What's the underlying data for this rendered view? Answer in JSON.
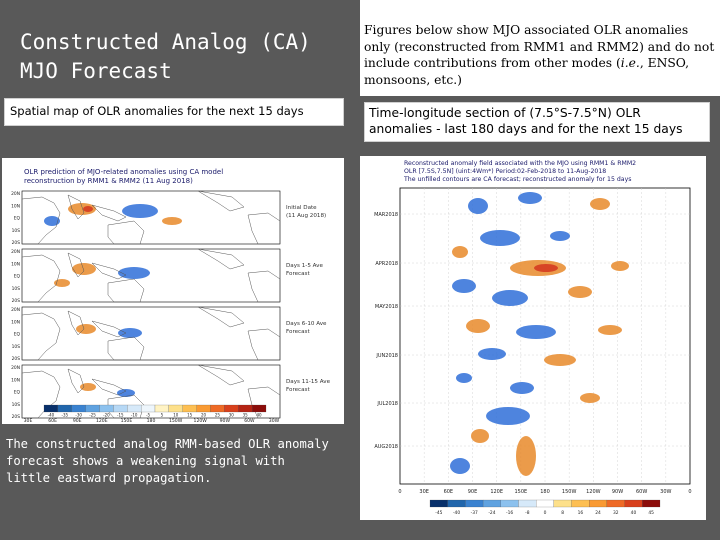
{
  "left_title": {
    "line1": "Constructed Analog (CA)",
    "line2": "MJO Forecast"
  },
  "left_caption": "Spatial map of OLR anomalies for the next 15 days",
  "left_summary": "The constructed analog RMM-based OLR anomaly forecast shows a weakening signal with little eastward propagation.",
  "right_note": {
    "before_italic": "Figures below show MJO associated OLR anomalies only (reconstructed from RMM1 and RMM2) and do not include contributions from other modes (",
    "italic": "i.e.",
    "after_italic": ", ENSO, monsoons, etc.)"
  },
  "right_caption": "Time-longitude section of (7.5°S-7.5°N) OLR anomalies - last 180 days and for the next 15 days",
  "map_figure": {
    "title_line1": "OLR prediction of MJO-related anomalies using CA model",
    "title_line2": "reconstruction by RMM1 & RMM2 (11 Aug 2018)",
    "lat_labels": [
      "20N",
      "10N",
      "EQ",
      "10S",
      "20S"
    ],
    "lon_labels": [
      "30E",
      "60E",
      "90E",
      "120E",
      "150E",
      "180",
      "150W",
      "120W",
      "90W",
      "60W",
      "30W"
    ],
    "panels": [
      {
        "label_line1": "Initial Date",
        "label_line2": "(11 Aug 2018)"
      },
      {
        "label_line1": "Days 1-5 Ave",
        "label_line2": "Forecast"
      },
      {
        "label_line1": "Days 6-10 Ave",
        "label_line2": "Forecast"
      },
      {
        "label_line1": "Days 11-15 Ave",
        "label_line2": "Forecast"
      }
    ],
    "colorbar_labels": [
      "-40",
      "-35",
      "-30",
      "-25",
      "-20",
      "-15",
      "-10",
      "-5",
      "5",
      "10",
      "15",
      "20",
      "25",
      "30",
      "35",
      "40"
    ]
  },
  "hov_figure": {
    "title_line1": "Reconstructed anomaly field associated with the MJO using RMM1 & RMM2",
    "title_line2": "OLR [7.5S,7.5N] (uint:4Wm*) Period:02-Feb-2018 to 11-Aug-2018",
    "title_line3": "The unfilled contours are CA forecast; reconstructed anomaly for 15 days",
    "y_labels": [
      "MAR2018",
      "APR2018",
      "MAY2018",
      "JUN2018",
      "JUL2018",
      "AUG2018"
    ],
    "x_labels": [
      "0",
      "30E",
      "60E",
      "90E",
      "120E",
      "150E",
      "180",
      "150W",
      "120W",
      "90W",
      "60W",
      "30W",
      "0"
    ],
    "colorbar_labels": [
      "-45",
      "-40",
      "-37",
      "-24",
      "-16",
      "-8",
      "0",
      "8",
      "16",
      "24",
      "32",
      "40",
      "45"
    ]
  },
  "colors": {
    "panel_bg": "#595959",
    "negative": "#2f6fd8",
    "positive": "#e8892a",
    "strong_positive": "#d3361f"
  }
}
